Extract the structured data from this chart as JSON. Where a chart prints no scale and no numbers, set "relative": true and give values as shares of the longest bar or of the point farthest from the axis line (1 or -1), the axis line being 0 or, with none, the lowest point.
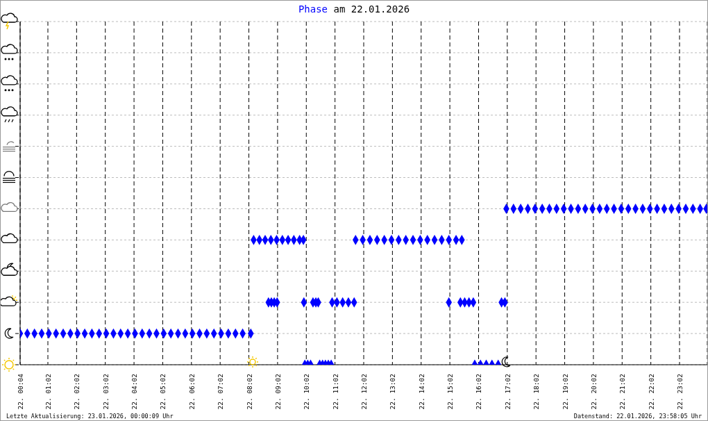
{
  "chart_data": {
    "type": "scatter",
    "title": "Phase am 22.01.2026",
    "annotations": [
      "Letzte Aktualisierung: 23.01.2026, 00:00:09 Uhr",
      "Datenstand: 22.01.2026, 23:58:05 Uhr"
    ],
    "xlim": [
      "2026-01-22T00:04",
      "2026-01-23T00:00"
    ],
    "xticks": [
      {
        "value": "2026-01-22T00:04",
        "label": "22. 00:04"
      },
      {
        "value": "2026-01-22T01:02",
        "label": "22. 01:02"
      },
      {
        "value": "2026-01-22T02:02",
        "label": "22. 02:02"
      },
      {
        "value": "2026-01-22T03:02",
        "label": "22. 03:02"
      },
      {
        "value": "2026-01-22T04:02",
        "label": "22. 04:02"
      },
      {
        "value": "2026-01-22T05:02",
        "label": "22. 05:02"
      },
      {
        "value": "2026-01-22T06:02",
        "label": "22. 06:02"
      },
      {
        "value": "2026-01-22T07:02",
        "label": "22. 07:02"
      },
      {
        "value": "2026-01-22T08:02",
        "label": "22. 08:02"
      },
      {
        "value": "2026-01-22T09:02",
        "label": "22. 09:02"
      },
      {
        "value": "2026-01-22T10:02",
        "label": "22. 10:02"
      },
      {
        "value": "2026-01-22T11:02",
        "label": "22. 11:02"
      },
      {
        "value": "2026-01-22T12:02",
        "label": "22. 12:02"
      },
      {
        "value": "2026-01-22T13:02",
        "label": "22. 13:02"
      },
      {
        "value": "2026-01-22T14:02",
        "label": "22. 14:02"
      },
      {
        "value": "2026-01-22T15:02",
        "label": "22. 15:02"
      },
      {
        "value": "2026-01-22T16:02",
        "label": "22. 16:02"
      },
      {
        "value": "2026-01-22T17:02",
        "label": "22. 17:02"
      },
      {
        "value": "2026-01-22T18:02",
        "label": "22. 18:02"
      },
      {
        "value": "2026-01-22T19:02",
        "label": "22. 19:02"
      },
      {
        "value": "2026-01-22T20:02",
        "label": "22. 20:02"
      },
      {
        "value": "2026-01-22T21:02",
        "label": "22. 21:02"
      },
      {
        "value": "2026-01-22T22:02",
        "label": "22. 22:02"
      },
      {
        "value": "2026-01-22T23:02",
        "label": "22. 23:02"
      }
    ],
    "relative": true,
    "grid": true,
    "legend": false,
    "marker": "diamond",
    "series": [
      {
        "color": "#0000ff",
        "x": [
          "2026-01-22T00:04",
          "2026-01-22T00:19",
          "2026-01-22T00:34",
          "2026-01-22T00:49",
          "2026-01-22T01:04",
          "2026-01-22T01:19",
          "2026-01-22T01:34",
          "2026-01-22T01:49",
          "2026-01-22T02:04",
          "2026-01-22T02:19",
          "2026-01-22T02:34",
          "2026-01-22T02:49",
          "2026-01-22T03:04",
          "2026-01-22T03:19",
          "2026-01-22T03:34",
          "2026-01-22T03:49",
          "2026-01-22T04:04",
          "2026-01-22T04:19",
          "2026-01-22T04:34",
          "2026-01-22T04:49",
          "2026-01-22T05:04",
          "2026-01-22T05:19",
          "2026-01-22T05:34",
          "2026-01-22T05:49",
          "2026-01-22T06:04",
          "2026-01-22T06:19",
          "2026-01-22T06:34",
          "2026-01-22T06:49",
          "2026-01-22T07:04",
          "2026-01-22T07:19",
          "2026-01-22T07:34",
          "2026-01-22T07:49",
          "2026-01-22T08:06",
          "2026-01-22T08:12",
          "2026-01-22T08:24",
          "2026-01-22T08:36",
          "2026-01-22T08:48",
          "2026-01-22T09:00",
          "2026-01-22T09:12",
          "2026-01-22T09:24",
          "2026-01-22T09:36",
          "2026-01-22T09:48",
          "2026-01-22T09:56",
          "2026-01-22T08:43",
          "2026-01-22T08:49",
          "2026-01-22T08:55",
          "2026-01-22T09:01",
          "2026-01-22T09:57",
          "2026-01-22T09:59",
          "2026-01-22T10:05",
          "2026-01-22T10:11",
          "2026-01-22T10:16",
          "2026-01-22T10:22",
          "2026-01-22T10:27",
          "2026-01-22T10:30",
          "2026-01-22T10:36",
          "2026-01-22T10:42",
          "2026-01-22T10:48",
          "2026-01-22T10:54",
          "2026-01-22T10:56",
          "2026-01-22T11:06",
          "2026-01-22T11:18",
          "2026-01-22T11:30",
          "2026-01-22T11:42",
          "2026-01-22T11:45",
          "2026-01-22T12:00",
          "2026-01-22T12:15",
          "2026-01-22T12:30",
          "2026-01-22T12:45",
          "2026-01-22T13:00",
          "2026-01-22T13:15",
          "2026-01-22T13:30",
          "2026-01-22T13:45",
          "2026-01-22T14:00",
          "2026-01-22T14:15",
          "2026-01-22T14:30",
          "2026-01-22T14:45",
          "2026-01-22T15:00",
          "2026-01-22T15:15",
          "2026-01-22T15:27",
          "2026-01-22T15:00",
          "2026-01-22T15:24",
          "2026-01-22T15:33",
          "2026-01-22T15:42",
          "2026-01-22T15:51",
          "2026-01-22T15:54",
          "2026-01-22T16:06",
          "2026-01-22T16:18",
          "2026-01-22T16:30",
          "2026-01-22T16:43",
          "2026-01-22T16:50",
          "2026-01-22T16:57",
          "2026-01-22T17:00",
          "2026-01-22T17:15",
          "2026-01-22T17:30",
          "2026-01-22T17:45",
          "2026-01-22T18:00",
          "2026-01-22T18:15",
          "2026-01-22T18:30",
          "2026-01-22T18:45",
          "2026-01-22T19:00",
          "2026-01-22T19:15",
          "2026-01-22T19:30",
          "2026-01-22T19:45",
          "2026-01-22T20:00",
          "2026-01-22T20:15",
          "2026-01-22T20:30",
          "2026-01-22T20:45",
          "2026-01-22T21:00",
          "2026-01-22T21:15",
          "2026-01-22T21:30",
          "2026-01-22T21:45",
          "2026-01-22T22:00",
          "2026-01-22T22:15",
          "2026-01-22T22:30",
          "2026-01-22T22:45",
          "2026-01-22T23:00",
          "2026-01-22T23:15",
          "2026-01-22T23:30",
          "2026-01-22T23:45",
          "2026-01-22T23:58"
        ],
        "values": [
          0.2,
          0.2,
          0.2,
          0.2,
          0.2,
          0.2,
          0.2,
          0.2,
          0.2,
          0.2,
          0.2,
          0.2,
          0.2,
          0.2,
          0.2,
          0.2,
          0.2,
          0.2,
          0.2,
          0.2,
          0.2,
          0.2,
          0.2,
          0.2,
          0.2,
          0.2,
          0.2,
          0.2,
          0.2,
          0.2,
          0.2,
          0.2,
          0.2,
          0.8,
          0.8,
          0.8,
          0.8,
          0.8,
          0.8,
          0.8,
          0.8,
          0.8,
          0.8,
          0.4,
          0.4,
          0.4,
          0.4,
          0.4,
          0,
          0,
          0,
          0.4,
          0.4,
          0.4,
          0,
          0,
          0,
          0,
          0,
          0.4,
          0.4,
          0.4,
          0.4,
          0.4,
          0.8,
          0.8,
          0.8,
          0.8,
          0.8,
          0.8,
          0.8,
          0.8,
          0.8,
          0.8,
          0.8,
          0.8,
          0.8,
          0.8,
          0.8,
          0.8,
          0.4,
          0.4,
          0.4,
          0.4,
          0.4,
          0,
          0,
          0,
          0,
          0,
          0.4,
          0.4,
          1,
          1,
          1,
          1,
          1,
          1,
          1,
          1,
          1,
          1,
          1,
          1,
          1,
          1,
          1,
          1,
          1,
          1,
          1,
          1,
          1,
          1,
          1,
          1,
          1,
          1,
          1,
          1,
          1
        ]
      }
    ]
  }
}
